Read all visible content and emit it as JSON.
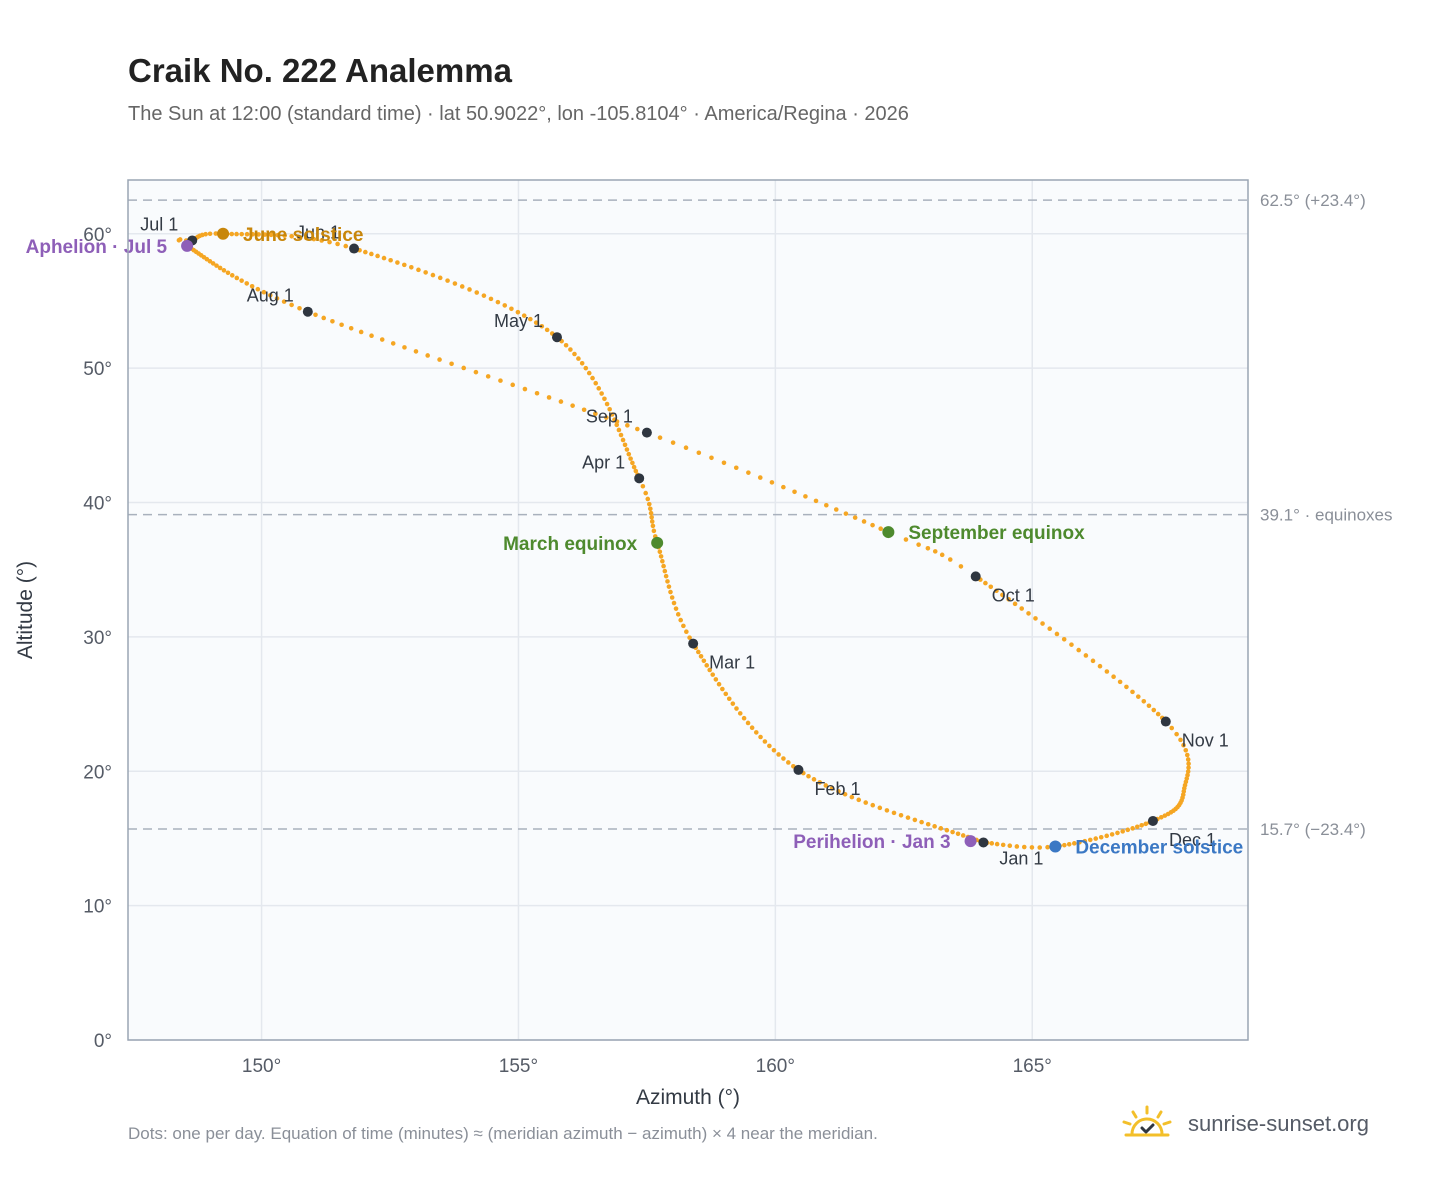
{
  "title": "Craik No. 222 Analemma",
  "subtitle": "The Sun at 12:00 (standard time) · lat 50.9022°, lon -105.8104° · America/Regina · 2026",
  "footer_note": "Dots: one per day. Equation of time (minutes) ≈ (meridian azimuth − azimuth) × 4 near the meridian.",
  "brand": {
    "name": "sunrise-sunset.org",
    "logo_icon": "sun-logo-icon"
  },
  "colors": {
    "curve": "#f5a623",
    "month_marker": "#2f3640",
    "aphelion_perihelion": "#8e5fb8",
    "june_solstice": "#c8860a",
    "december_solstice": "#3b78c4",
    "equinox": "#4e8a2e",
    "plot_bg": "#f9fbfd",
    "grid": "#e4e8ee",
    "reference_line": "#a9b1bd"
  },
  "chart_data": {
    "type": "scatter",
    "title": "Craik No. 222 Analemma",
    "xlabel": "Azimuth (°)",
    "ylabel": "Altitude (°)",
    "xlim": [
      147.4,
      169.2
    ],
    "ylim": [
      0,
      64
    ],
    "x_ticks": [
      150,
      155,
      160,
      165
    ],
    "x_tick_labels": [
      "150°",
      "155°",
      "160°",
      "165°"
    ],
    "y_ticks": [
      0,
      10,
      20,
      30,
      40,
      50,
      60
    ],
    "y_tick_labels": [
      "0°",
      "10°",
      "20°",
      "30°",
      "40°",
      "50°",
      "60°"
    ],
    "grid": true,
    "reference_lines": [
      {
        "y": 62.5,
        "label": "62.5° (+23.4°)"
      },
      {
        "y": 39.1,
        "label": "39.1° · equinoxes"
      },
      {
        "y": 15.7,
        "label": "15.7° (−23.4°)"
      }
    ],
    "analemma_anchors": [
      {
        "doy": 0,
        "az": 164.05,
        "alt": 14.7
      },
      {
        "doy": 31,
        "az": 160.45,
        "alt": 20.1
      },
      {
        "doy": 59,
        "az": 158.4,
        "alt": 29.5
      },
      {
        "doy": 78,
        "az": 157.7,
        "alt": 37.0
      },
      {
        "doy": 90,
        "az": 157.35,
        "alt": 41.8
      },
      {
        "doy": 120,
        "az": 155.75,
        "alt": 52.3
      },
      {
        "doy": 151,
        "az": 151.8,
        "alt": 58.9
      },
      {
        "doy": 171,
        "az": 149.25,
        "alt": 60.0
      },
      {
        "doy": 181,
        "az": 148.65,
        "alt": 59.5
      },
      {
        "doy": 185,
        "az": 148.55,
        "alt": 59.1
      },
      {
        "doy": 212,
        "az": 150.9,
        "alt": 54.2
      },
      {
        "doy": 243,
        "az": 157.5,
        "alt": 45.2
      },
      {
        "doy": 265,
        "az": 162.2,
        "alt": 37.8
      },
      {
        "doy": 273,
        "az": 163.9,
        "alt": 34.5
      },
      {
        "doy": 304,
        "az": 167.6,
        "alt": 23.7
      },
      {
        "doy": 320,
        "az": 167.95,
        "alt": 18.5
      },
      {
        "doy": 334,
        "az": 167.35,
        "alt": 16.3
      },
      {
        "doy": 354,
        "az": 165.45,
        "alt": 14.4
      },
      {
        "doy": 365,
        "az": 164.05,
        "alt": 14.7
      }
    ],
    "month_markers": [
      {
        "label": "Jan 1",
        "az": 164.05,
        "alt": 14.7,
        "pos": "below"
      },
      {
        "label": "Feb 1",
        "az": 160.45,
        "alt": 20.1,
        "pos": "below-right"
      },
      {
        "label": "Mar 1",
        "az": 158.4,
        "alt": 29.5,
        "pos": "below-right"
      },
      {
        "label": "Apr 1",
        "az": 157.35,
        "alt": 41.8,
        "pos": "above-left"
      },
      {
        "label": "May 1",
        "az": 155.75,
        "alt": 52.3,
        "pos": "above-left"
      },
      {
        "label": "Jun 1",
        "az": 151.8,
        "alt": 58.9,
        "pos": "above-left"
      },
      {
        "label": "Jul 1",
        "az": 148.65,
        "alt": 59.5,
        "pos": "above-left"
      },
      {
        "label": "Aug 1",
        "az": 150.9,
        "alt": 54.2,
        "pos": "above-left"
      },
      {
        "label": "Sep 1",
        "az": 157.5,
        "alt": 45.2,
        "pos": "above-left"
      },
      {
        "label": "Oct 1",
        "az": 163.9,
        "alt": 34.5,
        "pos": "below-right"
      },
      {
        "label": "Nov 1",
        "az": 167.6,
        "alt": 23.7,
        "pos": "below-right"
      },
      {
        "label": "Dec 1",
        "az": 167.35,
        "alt": 16.3,
        "pos": "below-right"
      }
    ],
    "events": [
      {
        "label": "Aphelion · Jul 5",
        "az": 148.55,
        "alt": 59.1,
        "color_key": "aphelion_perihelion",
        "pos": "left"
      },
      {
        "label": "June solstice",
        "az": 149.25,
        "alt": 60.0,
        "color_key": "june_solstice",
        "pos": "right"
      },
      {
        "label": "March equinox",
        "az": 157.7,
        "alt": 37.0,
        "color_key": "equinox",
        "pos": "left"
      },
      {
        "label": "September equinox",
        "az": 162.2,
        "alt": 37.8,
        "color_key": "equinox",
        "pos": "right"
      },
      {
        "label": "Perihelion · Jan 3",
        "az": 163.8,
        "alt": 14.8,
        "color_key": "aphelion_perihelion",
        "pos": "left"
      },
      {
        "label": "December solstice",
        "az": 165.45,
        "alt": 14.4,
        "color_key": "december_solstice",
        "pos": "right"
      }
    ]
  }
}
